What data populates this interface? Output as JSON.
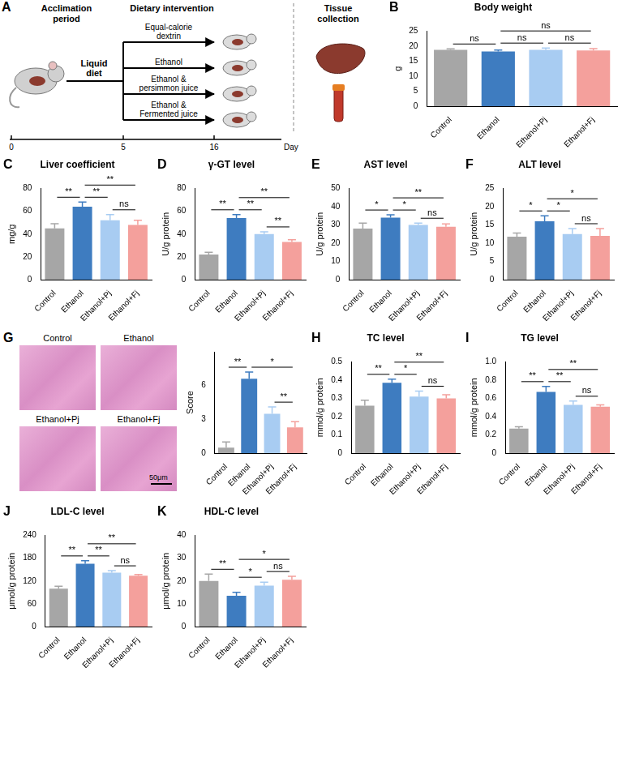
{
  "diagram": {
    "panel": "A",
    "headers": [
      "Acclimation period",
      "Dietary intervention",
      "Tissue collection"
    ],
    "feed_label": "Liquid diet",
    "groups": [
      "Equal-calorie dextrin",
      "Ethanol",
      "Ethanol & persimmon juice",
      "Ethanol & Fermented juice"
    ],
    "timeline": {
      "ticks": [
        0,
        5,
        16
      ],
      "unit": "Day"
    }
  },
  "histology": {
    "panel": "G",
    "labels": [
      "Control",
      "Ethanol",
      "Ethanol+Pj",
      "Ethanol+Fj"
    ],
    "scale_bar": "50μm"
  },
  "chart_data": [
    {
      "panel": "B",
      "type": "bar",
      "title": "Body weight",
      "y_label": "g",
      "categories": [
        "Control",
        "Ethanol",
        "Ethanol+Pj",
        "Ethanol+Fj"
      ],
      "values": [
        18.8,
        18.2,
        18.8,
        18.6
      ],
      "errors": [
        0.3,
        0.5,
        0.6,
        0.6
      ],
      "colors": [
        "#a6a6a6",
        "#3e7cc0",
        "#a8ccf2",
        "#f4a09c"
      ],
      "ylim": [
        0,
        25
      ],
      "yticks": [
        0,
        5,
        10,
        15,
        20,
        25
      ],
      "grid": false,
      "significance": [
        {
          "between": [
            "Control",
            "Ethanol"
          ],
          "text": "ns"
        },
        {
          "between": [
            "Ethanol",
            "Ethanol+Pj"
          ],
          "text": "ns"
        },
        {
          "between": [
            "Ethanol+Pj",
            "Ethanol+Fj"
          ],
          "text": "ns"
        },
        {
          "between": [
            "Ethanol",
            "Ethanol+Fj"
          ],
          "text": "ns"
        }
      ]
    },
    {
      "panel": "C",
      "type": "bar",
      "title": "Liver coefficient",
      "y_label": "mg/g",
      "categories": [
        "Control",
        "Ethanol",
        "Ethanol+Pj",
        "Ethanol+Fj"
      ],
      "values": [
        45,
        64,
        52,
        48
      ],
      "errors": [
        4,
        4,
        5,
        4
      ],
      "colors": [
        "#a6a6a6",
        "#3e7cc0",
        "#a8ccf2",
        "#f4a09c"
      ],
      "ylim": [
        0,
        80
      ],
      "yticks": [
        0,
        20,
        40,
        60,
        80
      ],
      "grid": false,
      "significance": [
        {
          "between": [
            "Control",
            "Ethanol"
          ],
          "text": "**"
        },
        {
          "between": [
            "Ethanol",
            "Ethanol+Pj"
          ],
          "text": "**"
        },
        {
          "between": [
            "Ethanol+Pj",
            "Ethanol+Fj"
          ],
          "text": "ns"
        },
        {
          "between": [
            "Ethanol",
            "Ethanol+Fj"
          ],
          "text": "**"
        }
      ]
    },
    {
      "panel": "D",
      "type": "bar",
      "title": "γ-GT level",
      "y_label": "U/g protein",
      "categories": [
        "Control",
        "Ethanol",
        "Ethanol+Pj",
        "Ethanol+Fj"
      ],
      "values": [
        22,
        54,
        40,
        33
      ],
      "errors": [
        2,
        3,
        2,
        2
      ],
      "colors": [
        "#a6a6a6",
        "#3e7cc0",
        "#a8ccf2",
        "#f4a09c"
      ],
      "ylim": [
        0,
        80
      ],
      "yticks": [
        0,
        20,
        40,
        60,
        80
      ],
      "grid": false,
      "significance": [
        {
          "between": [
            "Control",
            "Ethanol"
          ],
          "text": "**"
        },
        {
          "between": [
            "Ethanol",
            "Ethanol+Pj"
          ],
          "text": "**"
        },
        {
          "between": [
            "Ethanol+Pj",
            "Ethanol+Fj"
          ],
          "text": "**"
        },
        {
          "between": [
            "Ethanol",
            "Ethanol+Fj"
          ],
          "text": "**"
        }
      ]
    },
    {
      "panel": "E",
      "type": "bar",
      "title": "AST level",
      "y_label": "U/g protein",
      "categories": [
        "Control",
        "Ethanol",
        "Ethanol+Pj",
        "Ethanol+Fj"
      ],
      "values": [
        28,
        34,
        30,
        29
      ],
      "errors": [
        3,
        1.5,
        1,
        1.5
      ],
      "colors": [
        "#a6a6a6",
        "#3e7cc0",
        "#a8ccf2",
        "#f4a09c"
      ],
      "ylim": [
        0,
        50
      ],
      "yticks": [
        0,
        10,
        20,
        30,
        40,
        50
      ],
      "grid": false,
      "significance": [
        {
          "between": [
            "Control",
            "Ethanol"
          ],
          "text": "*"
        },
        {
          "between": [
            "Ethanol",
            "Ethanol+Pj"
          ],
          "text": "*"
        },
        {
          "between": [
            "Ethanol+Pj",
            "Ethanol+Fj"
          ],
          "text": "ns"
        },
        {
          "between": [
            "Ethanol",
            "Ethanol+Fj"
          ],
          "text": "**"
        }
      ]
    },
    {
      "panel": "F",
      "type": "bar",
      "title": "ALT level",
      "y_label": "U/g protein",
      "categories": [
        "Control",
        "Ethanol",
        "Ethanol+Pj",
        "Ethanol+Fj"
      ],
      "values": [
        11.8,
        16,
        12.5,
        12
      ],
      "errors": [
        1,
        1.5,
        1.5,
        2
      ],
      "colors": [
        "#a6a6a6",
        "#3e7cc0",
        "#a8ccf2",
        "#f4a09c"
      ],
      "ylim": [
        0,
        25
      ],
      "yticks": [
        0,
        5,
        10,
        15,
        20,
        25
      ],
      "grid": false,
      "significance": [
        {
          "between": [
            "Control",
            "Ethanol"
          ],
          "text": "*"
        },
        {
          "between": [
            "Ethanol",
            "Ethanol+Pj"
          ],
          "text": "*"
        },
        {
          "between": [
            "Ethanol+Pj",
            "Ethanol+Fj"
          ],
          "text": "ns"
        },
        {
          "between": [
            "Ethanol",
            "Ethanol+Fj"
          ],
          "text": "*"
        }
      ]
    },
    {
      "type": "bar",
      "y_label": "Score",
      "categories": [
        "Control",
        "Ethanol",
        "Ethanol+Pj",
        "Ethanol+Fj"
      ],
      "values": [
        0.5,
        6.6,
        3.5,
        2.3
      ],
      "errors": [
        0.5,
        0.6,
        0.6,
        0.5
      ],
      "colors": [
        "#a6a6a6",
        "#3e7cc0",
        "#a8ccf2",
        "#f4a09c"
      ],
      "ylim": [
        0,
        9
      ],
      "yticks": [
        0,
        3,
        6
      ],
      "grid": false,
      "significance": [
        {
          "between": [
            "Control",
            "Ethanol"
          ],
          "text": "**"
        },
        {
          "between": [
            "Ethanol+Pj",
            "Ethanol+Fj"
          ],
          "text": "**"
        },
        {
          "between": [
            "Ethanol",
            "Ethanol+Fj"
          ],
          "text": "*"
        }
      ]
    },
    {
      "panel": "H",
      "type": "bar",
      "title": "TC level",
      "y_label": "mmol/g protein",
      "categories": [
        "Control",
        "Ethanol",
        "Ethanol+Pj",
        "Ethanol+Fj"
      ],
      "values": [
        0.26,
        0.385,
        0.31,
        0.3
      ],
      "errors": [
        0.03,
        0.02,
        0.03,
        0.02
      ],
      "colors": [
        "#a6a6a6",
        "#3e7cc0",
        "#a8ccf2",
        "#f4a09c"
      ],
      "ylim": [
        0,
        0.5
      ],
      "yticks": [
        0,
        0.1,
        0.2,
        0.3,
        0.4,
        0.5
      ],
      "grid": false,
      "significance": [
        {
          "between": [
            "Control",
            "Ethanol"
          ],
          "text": "**"
        },
        {
          "between": [
            "Ethanol",
            "Ethanol+Pj"
          ],
          "text": "*"
        },
        {
          "between": [
            "Ethanol+Pj",
            "Ethanol+Fj"
          ],
          "text": "ns"
        },
        {
          "between": [
            "Ethanol",
            "Ethanol+Fj"
          ],
          "text": "**"
        }
      ]
    },
    {
      "panel": "I",
      "type": "bar",
      "title": "TG level",
      "y_label": "mmol/g protein",
      "categories": [
        "Control",
        "Ethanol",
        "Ethanol+Pj",
        "Ethanol+Fj"
      ],
      "values": [
        0.27,
        0.67,
        0.53,
        0.51
      ],
      "errors": [
        0.02,
        0.06,
        0.04,
        0.02
      ],
      "colors": [
        "#a6a6a6",
        "#3e7cc0",
        "#a8ccf2",
        "#f4a09c"
      ],
      "ylim": [
        0,
        1
      ],
      "yticks": [
        0,
        0.2,
        0.4,
        0.6,
        0.8,
        {
          "value": 1,
          "label": "1.0"
        }
      ],
      "grid": false,
      "significance": [
        {
          "between": [
            "Control",
            "Ethanol"
          ],
          "text": "**"
        },
        {
          "between": [
            "Ethanol",
            "Ethanol+Pj"
          ],
          "text": "**"
        },
        {
          "between": [
            "Ethanol+Pj",
            "Ethanol+Fj"
          ],
          "text": "ns"
        },
        {
          "between": [
            "Ethanol",
            "Ethanol+Fj"
          ],
          "text": "**"
        }
      ]
    },
    {
      "panel": "J",
      "type": "bar",
      "title": "LDL-C level",
      "y_label": "μmol/g protein",
      "categories": [
        "Control",
        "Ethanol",
        "Ethanol+Pj",
        "Ethanol+Fj"
      ],
      "values": [
        100,
        165,
        142,
        134
      ],
      "errors": [
        6,
        8,
        5,
        3
      ],
      "colors": [
        "#a6a6a6",
        "#3e7cc0",
        "#a8ccf2",
        "#f4a09c"
      ],
      "ylim": [
        0,
        240
      ],
      "yticks": [
        0,
        60,
        120,
        180,
        240
      ],
      "grid": false,
      "significance": [
        {
          "between": [
            "Control",
            "Ethanol"
          ],
          "text": "**"
        },
        {
          "between": [
            "Ethanol",
            "Ethanol+Pj"
          ],
          "text": "**"
        },
        {
          "between": [
            "Ethanol+Pj",
            "Ethanol+Fj"
          ],
          "text": "ns"
        },
        {
          "between": [
            "Ethanol",
            "Ethanol+Fj"
          ],
          "text": "**"
        }
      ]
    },
    {
      "panel": "K",
      "type": "bar",
      "title": "HDL-C level",
      "y_label": "μmol/g protein",
      "categories": [
        "Control",
        "Ethanol",
        "Ethanol+Pj",
        "Ethanol+Fj"
      ],
      "values": [
        20,
        13.5,
        18,
        20.5
      ],
      "errors": [
        3,
        1.5,
        1.5,
        1.5
      ],
      "colors": [
        "#a6a6a6",
        "#3e7cc0",
        "#a8ccf2",
        "#f4a09c"
      ],
      "ylim": [
        0,
        40
      ],
      "yticks": [
        0,
        10,
        20,
        30,
        40
      ],
      "grid": false,
      "significance": [
        {
          "between": [
            "Control",
            "Ethanol"
          ],
          "text": "**"
        },
        {
          "between": [
            "Ethanol",
            "Ethanol+Pj"
          ],
          "text": "*"
        },
        {
          "between": [
            "Ethanol+Pj",
            "Ethanol+Fj"
          ],
          "text": "ns"
        },
        {
          "between": [
            "Ethanol",
            "Ethanol+Fj"
          ],
          "text": "*"
        }
      ]
    }
  ]
}
